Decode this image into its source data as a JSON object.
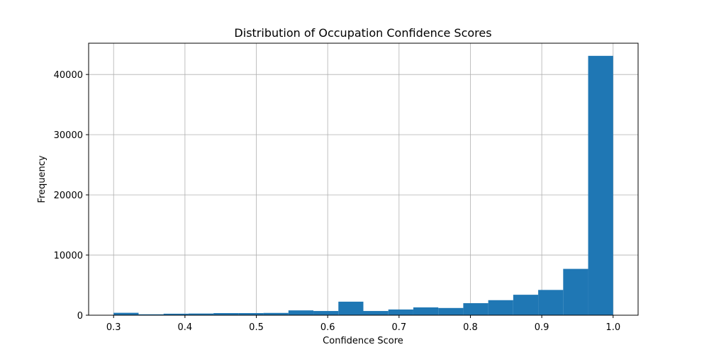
{
  "chart_data": {
    "type": "bar",
    "title": "Distribution of Occupation Confidence Scores",
    "xlabel": "Confidence Score",
    "ylabel": "Frequency",
    "xlim": [
      0.265,
      1.035
    ],
    "ylim": [
      0,
      45200
    ],
    "grid": true,
    "color": "#1f77b4",
    "bins": [
      {
        "x0": 0.3,
        "x1": 0.335,
        "value": 400
      },
      {
        "x0": 0.335,
        "x1": 0.37,
        "value": 150
      },
      {
        "x0": 0.37,
        "x1": 0.405,
        "value": 250
      },
      {
        "x0": 0.405,
        "x1": 0.44,
        "value": 280
      },
      {
        "x0": 0.44,
        "x1": 0.475,
        "value": 350
      },
      {
        "x0": 0.475,
        "x1": 0.51,
        "value": 350
      },
      {
        "x0": 0.51,
        "x1": 0.545,
        "value": 380
      },
      {
        "x0": 0.545,
        "x1": 0.58,
        "value": 800
      },
      {
        "x0": 0.58,
        "x1": 0.615,
        "value": 700
      },
      {
        "x0": 0.615,
        "x1": 0.65,
        "value": 2250
      },
      {
        "x0": 0.65,
        "x1": 0.685,
        "value": 700
      },
      {
        "x0": 0.685,
        "x1": 0.72,
        "value": 950
      },
      {
        "x0": 0.72,
        "x1": 0.755,
        "value": 1300
      },
      {
        "x0": 0.755,
        "x1": 0.79,
        "value": 1200
      },
      {
        "x0": 0.79,
        "x1": 0.825,
        "value": 2000
      },
      {
        "x0": 0.825,
        "x1": 0.86,
        "value": 2500
      },
      {
        "x0": 0.86,
        "x1": 0.895,
        "value": 3400
      },
      {
        "x0": 0.895,
        "x1": 0.93,
        "value": 4200
      },
      {
        "x0": 0.93,
        "x1": 0.965,
        "value": 7700
      },
      {
        "x0": 0.965,
        "x1": 1.0,
        "value": 43100
      }
    ],
    "xticks": [
      {
        "value": 0.3,
        "label": "0.3"
      },
      {
        "value": 0.4,
        "label": "0.4"
      },
      {
        "value": 0.5,
        "label": "0.5"
      },
      {
        "value": 0.6,
        "label": "0.6"
      },
      {
        "value": 0.7,
        "label": "0.7"
      },
      {
        "value": 0.8,
        "label": "0.8"
      },
      {
        "value": 0.9,
        "label": "0.9"
      },
      {
        "value": 1.0,
        "label": "1.0"
      }
    ],
    "yticks": [
      {
        "value": 0,
        "label": "0"
      },
      {
        "value": 10000,
        "label": "10000"
      },
      {
        "value": 20000,
        "label": "20000"
      },
      {
        "value": 30000,
        "label": "30000"
      },
      {
        "value": 40000,
        "label": "40000"
      }
    ]
  }
}
